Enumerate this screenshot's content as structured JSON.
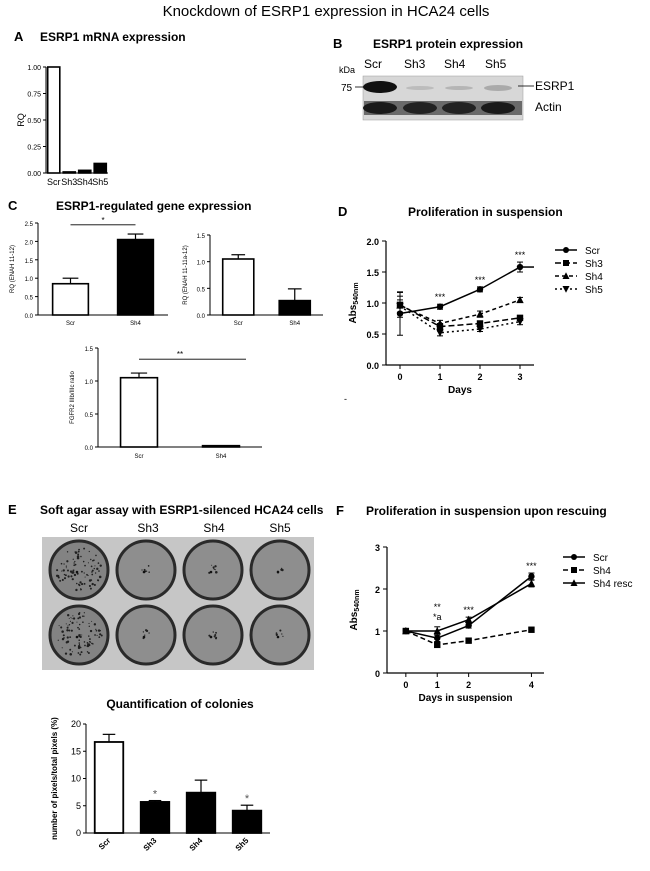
{
  "figure": {
    "title": "Knockdown of ESRP1 expression in HCA24 cells"
  },
  "panel_labels": {
    "a": "A",
    "b": "B",
    "c": "C",
    "d": "D",
    "e": "E",
    "f": "F"
  },
  "panelA": {
    "title": "ESRP1 mRNA expression",
    "chart_data": {
      "type": "bar",
      "title": "ESRP1 mRNA expression",
      "ylabel": "RQ",
      "ylim": [
        0,
        1.0
      ],
      "yticks": [
        "0.00",
        "0.25",
        "0.50",
        "0.75",
        "1.00"
      ],
      "categories": [
        "Scr",
        "Sh3",
        "Sh4",
        "Sh5"
      ],
      "values": [
        1.0,
        0.01,
        0.025,
        0.09
      ],
      "fills": [
        "#ffffff",
        "#000000",
        "#000000",
        "#000000"
      ]
    }
  },
  "panelB": {
    "title": "ESRP1 protein expression",
    "kda_label": "kDa",
    "marker": "75",
    "lanes": [
      "Scr",
      "Sh3",
      "Sh4",
      "Sh5"
    ],
    "band_labels": [
      "ESRP1",
      "Actin"
    ]
  },
  "panelC": {
    "title": "ESRP1-regulated  gene expression",
    "charts": [
      {
        "type": "bar",
        "ylabel": "RQ (ENAH 11-12)",
        "ylim": [
          0,
          2.5
        ],
        "yticks": [
          "0.0",
          "0.5",
          "1.0",
          "1.5",
          "2.0",
          "2.5"
        ],
        "categories": [
          "Scr",
          "Sh4"
        ],
        "values": [
          0.85,
          2.05
        ],
        "errors": [
          0.15,
          0.15
        ],
        "fills": [
          "#ffffff",
          "#000000"
        ],
        "sig": "*"
      },
      {
        "type": "bar",
        "ylabel": "RQ (ENAH 11-11a-12)",
        "ylim": [
          0,
          1.5
        ],
        "yticks": [
          "0.0",
          "0.5",
          "1.0",
          "1.5"
        ],
        "categories": [
          "Scr",
          "Sh4"
        ],
        "values": [
          1.05,
          0.27
        ],
        "errors": [
          0.08,
          0.22
        ],
        "fills": [
          "#ffffff",
          "#000000"
        ],
        "sig": ""
      },
      {
        "type": "bar",
        "ylabel": "FGFR2 IIIb/IIIc ratio",
        "ylim": [
          0,
          1.5
        ],
        "yticks": [
          "0.0",
          "0.5",
          "1.0",
          "1.5"
        ],
        "categories": [
          "Scr",
          "Sh4"
        ],
        "values": [
          1.05,
          0.02
        ],
        "errors": [
          0.07,
          0.0
        ],
        "fills": [
          "#ffffff",
          "#000000"
        ],
        "sig": "**"
      }
    ]
  },
  "panelD": {
    "title": "Proliferation in suspension",
    "chart_data": {
      "type": "line",
      "xlabel": "Days",
      "ylabel_main": "Abs",
      "ylabel_sub": "540nm",
      "ylim": [
        0,
        2.0
      ],
      "yticks": [
        "0.0",
        "0.5",
        "1.0",
        "1.5",
        "2.0"
      ],
      "x": [
        0,
        1,
        2,
        3
      ],
      "xticks": [
        "0",
        "1",
        "2",
        "3"
      ],
      "series": [
        {
          "name": "Scr",
          "values": [
            0.83,
            0.94,
            1.22,
            1.58
          ],
          "errors": [
            0.35,
            0.04,
            0.04,
            0.08
          ],
          "dash": "",
          "marker": "circle"
        },
        {
          "name": "Sh3",
          "values": [
            0.97,
            0.62,
            0.67,
            0.76
          ],
          "errors": [
            0.2,
            0.05,
            0.04,
            0.04
          ],
          "dash": "6,3",
          "marker": "square"
        },
        {
          "name": "Sh4",
          "values": [
            0.96,
            0.67,
            0.82,
            1.05
          ],
          "errors": [
            0.15,
            0.05,
            0.05,
            0.04
          ],
          "dash": "4,3",
          "marker": "triangle"
        },
        {
          "name": "Sh5",
          "values": [
            0.95,
            0.52,
            0.58,
            0.7
          ],
          "errors": [
            0.1,
            0.05,
            0.04,
            0.05
          ],
          "dash": "2,3",
          "marker": "tridown"
        }
      ],
      "annotations": [
        {
          "x": 1,
          "text": "***"
        },
        {
          "x": 2,
          "text": "***"
        },
        {
          "x": 3,
          "text": "***"
        }
      ],
      "extra_mark": "-"
    }
  },
  "panelE": {
    "title": "Soft agar assay with ESRP1-silenced  HCA24 cells",
    "columns": [
      "Scr",
      "Sh3",
      "Sh4",
      "Sh5"
    ],
    "quant": {
      "title": "Quantification  of colonies",
      "chart_data": {
        "type": "bar",
        "ylabel": "number of pixels/total pixels (%)",
        "ylim": [
          0,
          20
        ],
        "yticks": [
          "0",
          "5",
          "10",
          "15",
          "20"
        ],
        "categories": [
          "Scr",
          "Sh3",
          "Sh4",
          "Sh5"
        ],
        "values": [
          16.7,
          5.7,
          7.4,
          4.1
        ],
        "errors": [
          1.4,
          0.25,
          2.3,
          1.0
        ],
        "fills": [
          "#ffffff",
          "#000000",
          "#000000",
          "#000000"
        ],
        "sig": [
          "",
          "*",
          "",
          "*"
        ]
      }
    }
  },
  "panelF": {
    "title": "Proliferation in suspension upon rescuing",
    "chart_data": {
      "type": "line",
      "xlabel": "Days in suspension",
      "ylabel_main": "Abs",
      "ylabel_sub": "540nm",
      "ylim": [
        0,
        3
      ],
      "yticks": [
        "0",
        "1",
        "2",
        "3"
      ],
      "x": [
        0,
        1,
        2,
        4
      ],
      "xticks": [
        "0",
        "1",
        "2",
        "4"
      ],
      "series": [
        {
          "name": "Scr",
          "values": [
            1.0,
            0.83,
            1.13,
            2.3
          ],
          "errors": [
            0.05,
            0.08,
            0.06,
            0.08
          ],
          "dash": "",
          "marker": "circle"
        },
        {
          "name": "Sh4",
          "values": [
            1.0,
            0.67,
            0.77,
            1.03
          ],
          "errors": [
            0.04,
            0.05,
            0.04,
            0.04
          ],
          "dash": "5,3",
          "marker": "square"
        },
        {
          "name": "Sh4 resc",
          "values": [
            1.0,
            1.0,
            1.27,
            2.13
          ],
          "errors": [
            0.05,
            0.1,
            0.06,
            0.08
          ],
          "dash": "",
          "marker": "triangle"
        }
      ],
      "annotations": [
        {
          "x": 1,
          "text": "**",
          "row": 0
        },
        {
          "x": 1,
          "text": "*a",
          "row": 1
        },
        {
          "x": 2,
          "text": "***",
          "row": 1
        },
        {
          "x": 4,
          "text": "***",
          "row": 0
        }
      ]
    }
  }
}
